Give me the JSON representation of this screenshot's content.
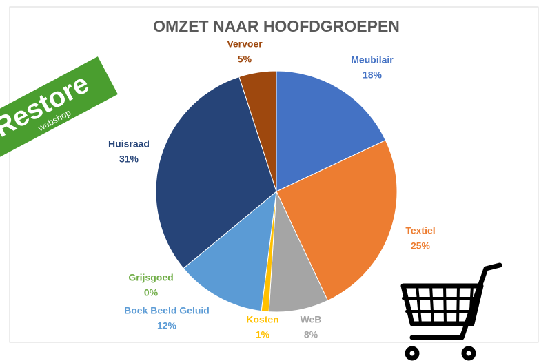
{
  "logo": {
    "name": "Restore",
    "tagline": "webshop"
  },
  "chart_data": {
    "type": "pie",
    "title": "OMZET NAAR HOOFDGROEPEN",
    "categories": [
      "Meubilair",
      "Textiel",
      "WeB",
      "Kosten",
      "Boek Beeld Geluid",
      "Grijsgoed",
      "Huisraad",
      "Vervoer"
    ],
    "values": [
      18,
      25,
      8,
      1,
      12,
      0,
      31,
      5
    ],
    "value_labels": [
      "18%",
      "25%",
      "8%",
      "1%",
      "12%",
      "0%",
      "31%",
      "5%"
    ],
    "colors": [
      "#4472c4",
      "#ed7d31",
      "#a5a5a5",
      "#ffc000",
      "#5b9bd5",
      "#70ad47",
      "#264478",
      "#9e480e"
    ]
  }
}
